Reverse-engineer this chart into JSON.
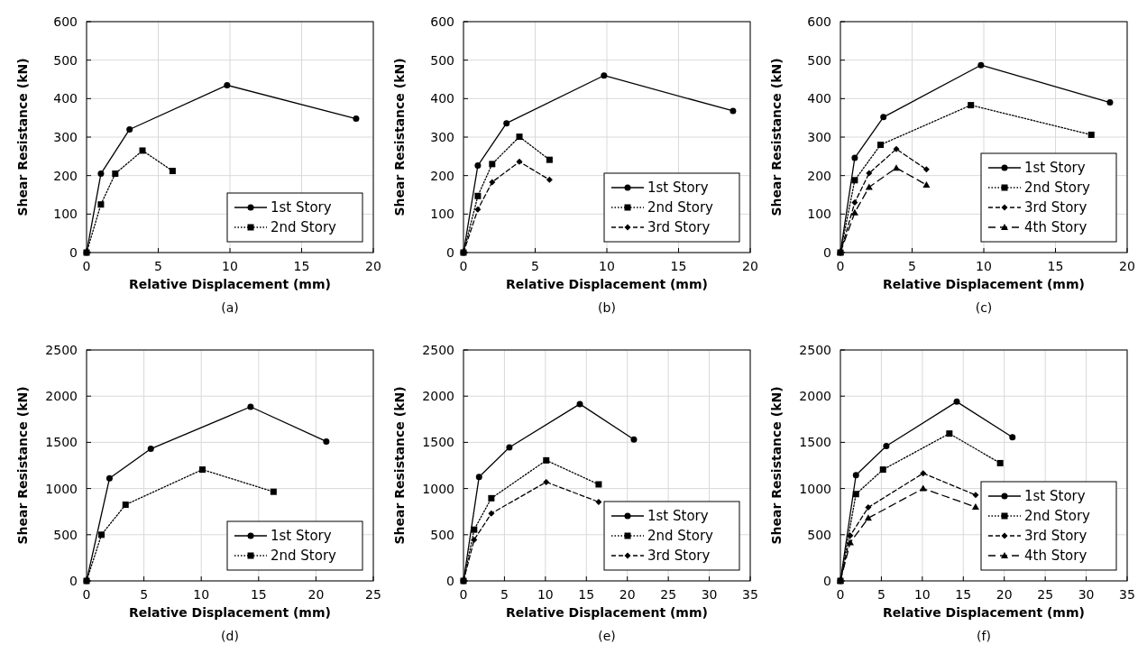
{
  "chart_data": [
    {
      "type": "line",
      "xlabel": "Relative Displacement (mm)",
      "ylabel": "Shear Resistance (kN)",
      "annotations": [
        "(a)"
      ],
      "xlim": [
        0,
        20
      ],
      "xticks": [
        0,
        5,
        10,
        15,
        20
      ],
      "ylim": [
        0,
        600
      ],
      "yticks": [
        0,
        100,
        200,
        300,
        400,
        500,
        600
      ],
      "grid": true,
      "legend": "bottom right",
      "series": [
        {
          "name": "1st Story",
          "color": "#000000",
          "marker": "circle",
          "line_style": "solid",
          "x": [
            0,
            1,
            3,
            9.8,
            18.8
          ],
          "values": [
            0,
            205,
            320,
            435,
            348
          ]
        },
        {
          "name": "2nd Story",
          "color": "#000000",
          "marker": "square",
          "line_style": "dotted",
          "x": [
            0,
            1,
            2,
            3.9,
            6
          ],
          "values": [
            0,
            125,
            205,
            265,
            212
          ]
        }
      ]
    },
    {
      "type": "line",
      "xlabel": "Relative Displacement (mm)",
      "ylabel": "Shear Resistance (kN)",
      "annotations": [
        "(b)"
      ],
      "xlim": [
        0,
        20
      ],
      "xticks": [
        0,
        5,
        10,
        15,
        20
      ],
      "ylim": [
        0,
        600
      ],
      "yticks": [
        0,
        100,
        200,
        300,
        400,
        500,
        600
      ],
      "grid": true,
      "legend": "bottom right",
      "series": [
        {
          "name": "1st Story",
          "color": "#000000",
          "marker": "circle",
          "line_style": "solid",
          "x": [
            0,
            1,
            3,
            9.8,
            18.8
          ],
          "values": [
            0,
            226,
            336,
            460,
            368
          ]
        },
        {
          "name": "2nd Story",
          "color": "#000000",
          "marker": "square",
          "line_style": "dotted",
          "x": [
            0,
            1,
            2,
            3.9,
            6
          ],
          "values": [
            0,
            147,
            230,
            301,
            241
          ]
        },
        {
          "name": "3rd Story",
          "color": "#000000",
          "marker": "diamond",
          "line_style": "dashed",
          "x": [
            0,
            1,
            2,
            3.9,
            6
          ],
          "values": [
            0,
            112,
            183,
            236,
            189
          ]
        }
      ]
    },
    {
      "type": "line",
      "xlabel": "Relative Displacement (mm)",
      "ylabel": "Shear Resistance (kN)",
      "annotations": [
        "(c)"
      ],
      "xlim": [
        0,
        20
      ],
      "xticks": [
        0,
        5,
        10,
        15,
        20
      ],
      "ylim": [
        0,
        600
      ],
      "yticks": [
        0,
        100,
        200,
        300,
        400,
        500,
        600
      ],
      "grid": true,
      "legend": "bottom right",
      "series": [
        {
          "name": "1st Story",
          "color": "#000000",
          "marker": "circle",
          "line_style": "solid",
          "x": [
            0,
            1,
            3,
            9.8,
            18.8
          ],
          "values": [
            0,
            246,
            352,
            487,
            390
          ]
        },
        {
          "name": "2nd Story",
          "color": "#000000",
          "marker": "square",
          "line_style": "dotted",
          "x": [
            0,
            1,
            2.8,
            9.1,
            17.5
          ],
          "values": [
            0,
            188,
            280,
            383,
            306
          ]
        },
        {
          "name": "3rd Story",
          "color": "#000000",
          "marker": "diamond",
          "line_style": "dashed",
          "x": [
            0,
            1,
            2,
            3.9,
            6
          ],
          "values": [
            0,
            130,
            206,
            269,
            216
          ]
        },
        {
          "name": "4th Story",
          "color": "#000000",
          "marker": "triangle",
          "line_style": "dashed",
          "x": [
            0,
            1,
            2,
            3.9,
            6
          ],
          "values": [
            0,
            104,
            170,
            220,
            176
          ]
        }
      ]
    },
    {
      "type": "line",
      "xlabel": "Relative Displacement (mm)",
      "ylabel": "Shear Resistance (kN)",
      "annotations": [
        "(d)"
      ],
      "xlim": [
        0,
        25
      ],
      "xticks": [
        0,
        5,
        10,
        15,
        20,
        25
      ],
      "ylim": [
        0,
        2500
      ],
      "yticks": [
        0,
        500,
        1000,
        1500,
        2000,
        2500
      ],
      "grid": true,
      "legend": "bottom right",
      "series": [
        {
          "name": "1st Story",
          "color": "#000000",
          "marker": "circle",
          "line_style": "solid",
          "x": [
            0,
            2,
            5.6,
            14.3,
            20.9
          ],
          "values": [
            0,
            1110,
            1430,
            1885,
            1510
          ]
        },
        {
          "name": "2nd Story",
          "color": "#000000",
          "marker": "square",
          "line_style": "dotted",
          "x": [
            0,
            1.3,
            3.4,
            10.1,
            16.3
          ],
          "values": [
            0,
            500,
            825,
            1205,
            965
          ]
        }
      ]
    },
    {
      "type": "line",
      "xlabel": "Relative Displacement (mm)",
      "ylabel": "Shear Resistance (kN)",
      "annotations": [
        "(e)"
      ],
      "xlim": [
        0,
        35
      ],
      "xticks": [
        0,
        5,
        10,
        15,
        20,
        25,
        30,
        35
      ],
      "ylim": [
        0,
        2500
      ],
      "yticks": [
        0,
        500,
        1000,
        1500,
        2000,
        2500
      ],
      "grid": true,
      "legend": "bottom right",
      "series": [
        {
          "name": "1st Story",
          "color": "#000000",
          "marker": "circle",
          "line_style": "solid",
          "x": [
            0,
            1.9,
            5.6,
            14.2,
            20.8
          ],
          "values": [
            0,
            1125,
            1445,
            1915,
            1530
          ]
        },
        {
          "name": "2nd Story",
          "color": "#000000",
          "marker": "square",
          "line_style": "dotted",
          "x": [
            0,
            1.3,
            3.4,
            10.1,
            16.5
          ],
          "values": [
            0,
            555,
            895,
            1305,
            1045
          ]
        },
        {
          "name": "3rd Story",
          "color": "#000000",
          "marker": "diamond",
          "line_style": "dashed",
          "x": [
            0,
            1.3,
            3.4,
            10.1,
            16.5
          ],
          "values": [
            0,
            445,
            730,
            1070,
            855
          ]
        }
      ]
    },
    {
      "type": "line",
      "xlabel": "Relative Displacement (mm)",
      "ylabel": "Shear Resistance (kN)",
      "annotations": [
        "(f)"
      ],
      "xlim": [
        0,
        35
      ],
      "xticks": [
        0,
        5,
        10,
        15,
        20,
        25,
        30,
        35
      ],
      "ylim": [
        0,
        2500
      ],
      "yticks": [
        0,
        500,
        1000,
        1500,
        2000,
        2500
      ],
      "grid": true,
      "legend": "bottom right",
      "series": [
        {
          "name": "1st Story",
          "color": "#000000",
          "marker": "circle",
          "line_style": "solid",
          "x": [
            0,
            1.9,
            5.6,
            14.2,
            21
          ],
          "values": [
            0,
            1145,
            1460,
            1940,
            1555
          ]
        },
        {
          "name": "2nd Story",
          "color": "#000000",
          "marker": "square",
          "line_style": "dotted",
          "x": [
            0,
            1.9,
            5.2,
            13.3,
            19.5
          ],
          "values": [
            0,
            940,
            1205,
            1595,
            1275
          ]
        },
        {
          "name": "3rd Story",
          "color": "#000000",
          "marker": "diamond",
          "line_style": "dashed",
          "x": [
            0,
            1.2,
            3.4,
            10.1,
            16.5
          ],
          "values": [
            0,
            490,
            795,
            1165,
            930
          ]
        },
        {
          "name": "4th Story",
          "color": "#000000",
          "marker": "triangle",
          "line_style": "dashed",
          "x": [
            0,
            1.2,
            3.4,
            10.1,
            16.5
          ],
          "values": [
            0,
            415,
            680,
            1000,
            800
          ]
        }
      ]
    }
  ]
}
